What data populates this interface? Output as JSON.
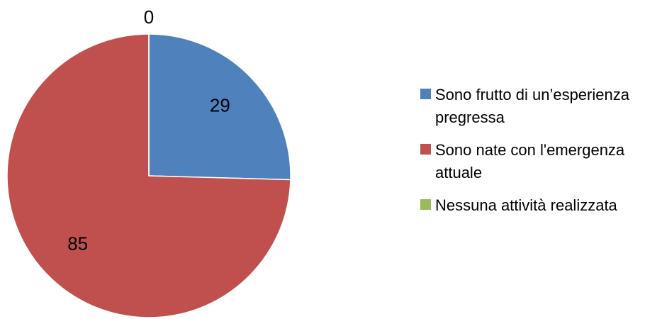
{
  "chart_data": {
    "type": "pie",
    "categories": [
      "Sono frutto di un’esperienza pregressa",
      "Sono nate con l'emergenza attuale",
      "Nessuna attività realizzata"
    ],
    "values": [
      29,
      85,
      0
    ],
    "colors": [
      "#4f81bd",
      "#c0504d",
      "#9bbb59"
    ],
    "legend": "right"
  }
}
